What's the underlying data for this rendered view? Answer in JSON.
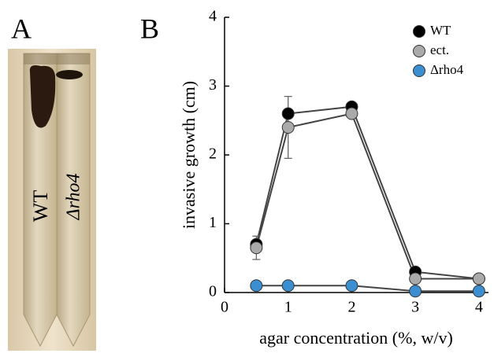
{
  "panel_labels": [
    "A",
    "B"
  ],
  "photo_labels": [
    "WT",
    "Δrho4"
  ],
  "chart_data": {
    "type": "line",
    "xlabel": "agar concentration (%, w/v)",
    "ylabel": "invasive growth (cm)",
    "x": [
      0.5,
      1,
      2,
      3,
      4
    ],
    "xlim": [
      0,
      4.15
    ],
    "xticks": [
      0,
      1,
      2,
      3,
      4
    ],
    "ylim": [
      0,
      4
    ],
    "yticks": [
      0,
      1,
      2,
      3,
      4
    ],
    "legend": "top-right",
    "line_color": "#444444",
    "series": [
      {
        "name": "WT",
        "color": "#000000",
        "values": [
          0.7,
          2.6,
          2.7,
          0.3,
          0.2
        ],
        "errors": [
          null,
          null,
          null,
          null,
          null
        ]
      },
      {
        "name": "ect.",
        "color": "#aaaaaa",
        "values": [
          0.65,
          2.4,
          2.6,
          0.2,
          0.2
        ],
        "errors": [
          0.17,
          0.45,
          null,
          null,
          null
        ]
      },
      {
        "name": "Δrho4",
        "color": "#3b8fd0",
        "values": [
          0.1,
          0.1,
          0.1,
          0.02,
          0.02
        ],
        "errors": [
          null,
          null,
          null,
          null,
          null
        ]
      }
    ]
  }
}
